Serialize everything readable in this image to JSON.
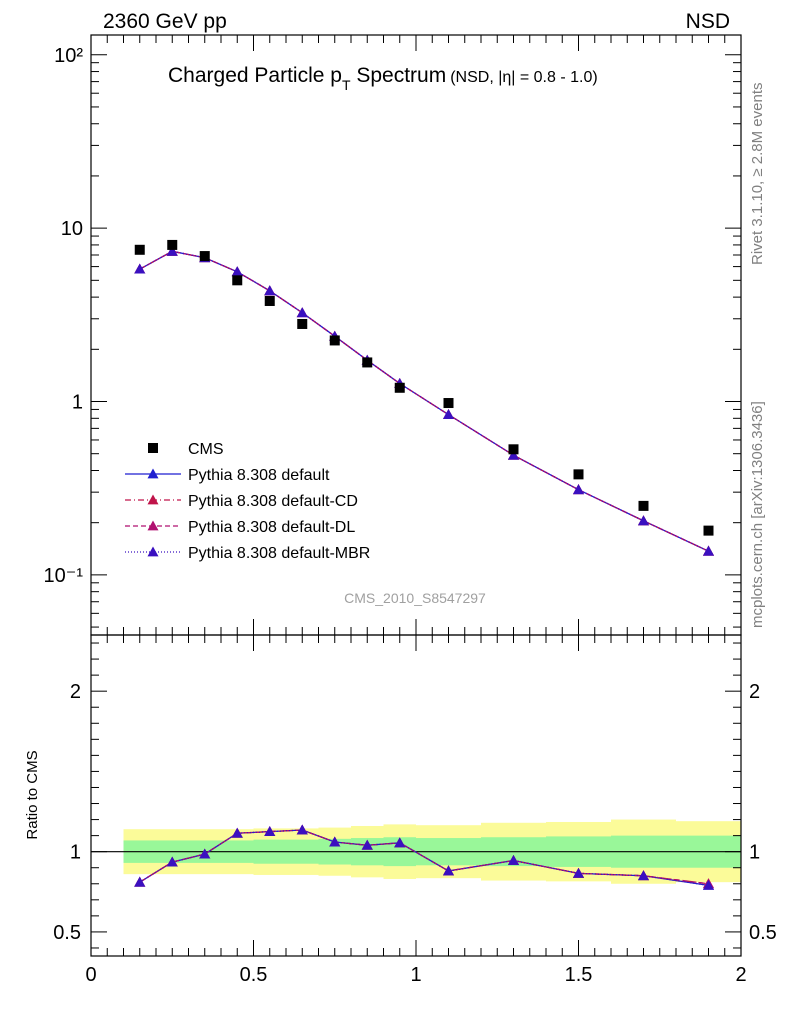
{
  "header": {
    "left": "2360 GeV pp",
    "right": "NSD"
  },
  "side_labels": {
    "rivet": "Rivet 3.1.10, ≥ 2.8M events",
    "mcplots": "mcplots.cern.ch [arXiv:1306.3436]"
  },
  "colors": {
    "data": "#000000",
    "default": "#1f1fd0",
    "default_cd": "#c0144a",
    "default_dl": "#b01070",
    "default_mbr": "#3a10c0",
    "band_inner": "#99f799",
    "band_outer": "#fbfb99"
  },
  "chart_data": [
    {
      "type": "scatter",
      "title_main": "Charged Particle p",
      "title_sub": "T",
      "title_rest": " Spectrum",
      "title_extra": "(NSD, |η| = 0.8 - 1.0)",
      "watermark": "CMS_2010_S8547297",
      "yscale": "log",
      "xlim": [
        0,
        2
      ],
      "ylim": [
        0.045,
        130
      ],
      "ytick_labels": {
        "0.1": "10⁻¹",
        "1": "1",
        "10": "10",
        "100": "10²"
      },
      "legend_position": "lower-left",
      "x": [
        0.15,
        0.25,
        0.35,
        0.45,
        0.55,
        0.65,
        0.75,
        0.85,
        0.95,
        1.1,
        1.3,
        1.5,
        1.7,
        1.9
      ],
      "series": [
        {
          "name": "CMS",
          "style": "data",
          "values": [
            7.5,
            8.0,
            6.9,
            5.0,
            3.8,
            2.8,
            2.25,
            1.68,
            1.2,
            0.98,
            0.53,
            0.38,
            0.25,
            0.18
          ]
        },
        {
          "name": "Pythia 8.308 default",
          "style": "solid",
          "values": [
            5.8,
            7.35,
            6.75,
            5.6,
            4.35,
            3.25,
            2.38,
            1.73,
            1.27,
            0.84,
            0.49,
            0.31,
            0.205,
            0.137
          ]
        },
        {
          "name": "Pythia 8.308 default-CD",
          "style": "dashdot",
          "values": [
            5.8,
            7.35,
            6.75,
            5.6,
            4.35,
            3.25,
            2.38,
            1.73,
            1.27,
            0.84,
            0.49,
            0.31,
            0.205,
            0.137
          ]
        },
        {
          "name": "Pythia 8.308 default-DL",
          "style": "dashed",
          "values": [
            5.8,
            7.35,
            6.75,
            5.6,
            4.35,
            3.25,
            2.38,
            1.73,
            1.27,
            0.84,
            0.49,
            0.31,
            0.205,
            0.137
          ]
        },
        {
          "name": "Pythia 8.308 default-MBR",
          "style": "dotted",
          "values": [
            5.8,
            7.35,
            6.75,
            5.6,
            4.35,
            3.25,
            2.38,
            1.73,
            1.27,
            0.84,
            0.49,
            0.31,
            0.205,
            0.137
          ]
        }
      ]
    },
    {
      "type": "line",
      "ylabel": "Ratio to CMS",
      "xlim": [
        0,
        2
      ],
      "ylim": [
        0.35,
        2.35
      ],
      "xticks": [
        0,
        0.5,
        1,
        1.5,
        2
      ],
      "xtick_labels": [
        "0",
        "0.5",
        "1",
        "1.5",
        "2"
      ],
      "yticks": [
        0.5,
        1,
        2
      ],
      "ytick_labels": [
        "0.5",
        "1",
        "2"
      ],
      "bins": [
        {
          "lo": 0.1,
          "hi": 0.2,
          "inner": [
            0.93,
            1.07
          ],
          "outer": [
            0.86,
            1.14
          ]
        },
        {
          "lo": 0.2,
          "hi": 0.3,
          "inner": [
            0.93,
            1.07
          ],
          "outer": [
            0.86,
            1.14
          ]
        },
        {
          "lo": 0.3,
          "hi": 0.4,
          "inner": [
            0.93,
            1.07
          ],
          "outer": [
            0.86,
            1.14
          ]
        },
        {
          "lo": 0.4,
          "hi": 0.5,
          "inner": [
            0.93,
            1.07
          ],
          "outer": [
            0.86,
            1.14
          ]
        },
        {
          "lo": 0.5,
          "hi": 0.6,
          "inner": [
            0.925,
            1.075
          ],
          "outer": [
            0.855,
            1.145
          ]
        },
        {
          "lo": 0.6,
          "hi": 0.7,
          "inner": [
            0.925,
            1.075
          ],
          "outer": [
            0.855,
            1.145
          ]
        },
        {
          "lo": 0.7,
          "hi": 0.8,
          "inner": [
            0.92,
            1.08
          ],
          "outer": [
            0.85,
            1.15
          ]
        },
        {
          "lo": 0.8,
          "hi": 0.9,
          "inner": [
            0.915,
            1.085
          ],
          "outer": [
            0.84,
            1.16
          ]
        },
        {
          "lo": 0.9,
          "hi": 1.0,
          "inner": [
            0.91,
            1.09
          ],
          "outer": [
            0.83,
            1.17
          ]
        },
        {
          "lo": 1.0,
          "hi": 1.2,
          "inner": [
            0.915,
            1.085
          ],
          "outer": [
            0.835,
            1.165
          ]
        },
        {
          "lo": 1.2,
          "hi": 1.4,
          "inner": [
            0.91,
            1.09
          ],
          "outer": [
            0.82,
            1.18
          ]
        },
        {
          "lo": 1.4,
          "hi": 1.6,
          "inner": [
            0.905,
            1.095
          ],
          "outer": [
            0.815,
            1.185
          ]
        },
        {
          "lo": 1.6,
          "hi": 1.8,
          "inner": [
            0.9,
            1.1
          ],
          "outer": [
            0.8,
            1.2
          ]
        },
        {
          "lo": 1.8,
          "hi": 2.0,
          "inner": [
            0.9,
            1.1
          ],
          "outer": [
            0.81,
            1.19
          ]
        }
      ],
      "x": [
        0.15,
        0.25,
        0.35,
        0.45,
        0.55,
        0.65,
        0.75,
        0.85,
        0.95,
        1.1,
        1.3,
        1.5,
        1.7,
        1.9
      ],
      "series": [
        {
          "name": "Pythia 8.308 default",
          "style": "solid",
          "values": [
            0.81,
            0.935,
            0.985,
            1.115,
            1.125,
            1.135,
            1.06,
            1.04,
            1.055,
            0.88,
            0.945,
            0.865,
            0.85,
            0.79
          ]
        },
        {
          "name": "Pythia 8.308 default-CD",
          "style": "dashdot",
          "values": [
            0.81,
            0.935,
            0.985,
            1.115,
            1.125,
            1.135,
            1.06,
            1.04,
            1.055,
            0.88,
            0.945,
            0.865,
            0.85,
            0.8
          ]
        },
        {
          "name": "Pythia 8.308 default-DL",
          "style": "dashed",
          "values": [
            0.81,
            0.935,
            0.985,
            1.115,
            1.125,
            1.135,
            1.06,
            1.04,
            1.055,
            0.88,
            0.945,
            0.865,
            0.85,
            0.8
          ]
        },
        {
          "name": "Pythia 8.308 default-MBR",
          "style": "dotted",
          "values": [
            0.81,
            0.935,
            0.985,
            1.115,
            1.125,
            1.135,
            1.06,
            1.04,
            1.055,
            0.88,
            0.945,
            0.865,
            0.85,
            0.79
          ]
        }
      ]
    }
  ]
}
